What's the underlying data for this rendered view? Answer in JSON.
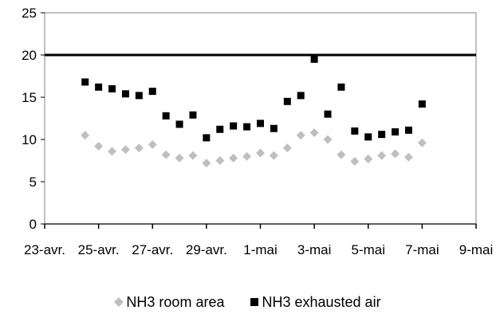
{
  "chart_data": {
    "type": "scatter",
    "title": "",
    "xlabel": "",
    "ylabel": "",
    "ylim": [
      0,
      25
    ],
    "yticks": [
      0,
      5,
      10,
      15,
      20,
      25
    ],
    "xlim": [
      "23-avr.",
      "9-mai"
    ],
    "xtick_labels": [
      "23-avr.",
      "25-avr.",
      "27-avr.",
      "29-avr.",
      "1-mai",
      "3-mai",
      "5-mai",
      "7-mai",
      "9-mai"
    ],
    "reference_line": {
      "y": 20,
      "color": "#000000"
    },
    "grid": false,
    "legend_position": "bottom",
    "series": [
      {
        "name": "NH3 room area",
        "marker": "diamond",
        "color": "#bfbfbf",
        "x": [
          "24-avr. 12h",
          "25-avr. 0h",
          "25-avr. 12h",
          "26-avr. 0h",
          "26-avr. 12h",
          "27-avr. 0h",
          "27-avr. 12h",
          "28-avr. 0h",
          "28-avr. 12h",
          "29-avr. 0h",
          "29-avr. 12h",
          "30-avr. 0h",
          "30-avr. 12h",
          "1-mai 0h",
          "1-mai 12h",
          "2-mai 0h",
          "2-mai 12h",
          "3-mai 0h",
          "3-mai 12h",
          "4-mai 0h",
          "4-mai 12h",
          "5-mai 0h",
          "5-mai 12h",
          "6-mai 0h",
          "6-mai 12h",
          "7-mai 0h"
        ],
        "values": [
          10.5,
          9.2,
          8.6,
          8.8,
          9.0,
          9.4,
          8.2,
          7.8,
          8.1,
          7.2,
          7.5,
          7.8,
          8.0,
          8.4,
          8.1,
          9.0,
          10.5,
          10.8,
          10.0,
          8.2,
          7.4,
          7.7,
          8.1,
          8.3,
          7.9,
          9.6
        ]
      },
      {
        "name": "NH3 exhausted air",
        "marker": "square",
        "color": "#000000",
        "x": [
          "24-avr. 12h",
          "25-avr. 0h",
          "25-avr. 12h",
          "26-avr. 0h",
          "26-avr. 12h",
          "27-avr. 0h",
          "27-avr. 12h",
          "28-avr. 0h",
          "28-avr. 12h",
          "29-avr. 0h",
          "29-avr. 12h",
          "30-avr. 0h",
          "30-avr. 12h",
          "1-mai 0h",
          "1-mai 12h",
          "2-mai 0h",
          "2-mai 12h",
          "3-mai 0h",
          "3-mai 12h",
          "4-mai 0h",
          "4-mai 12h",
          "5-mai 0h",
          "5-mai 12h",
          "6-mai 0h",
          "6-mai 12h",
          "7-mai 0h"
        ],
        "values": [
          16.8,
          16.2,
          16.0,
          15.4,
          15.2,
          15.7,
          12.8,
          11.8,
          12.9,
          10.2,
          11.2,
          11.6,
          11.5,
          11.9,
          11.3,
          14.5,
          15.2,
          19.5,
          13.0,
          16.2,
          11.0,
          10.3,
          10.6,
          10.9,
          11.1,
          14.2
        ]
      }
    ]
  }
}
